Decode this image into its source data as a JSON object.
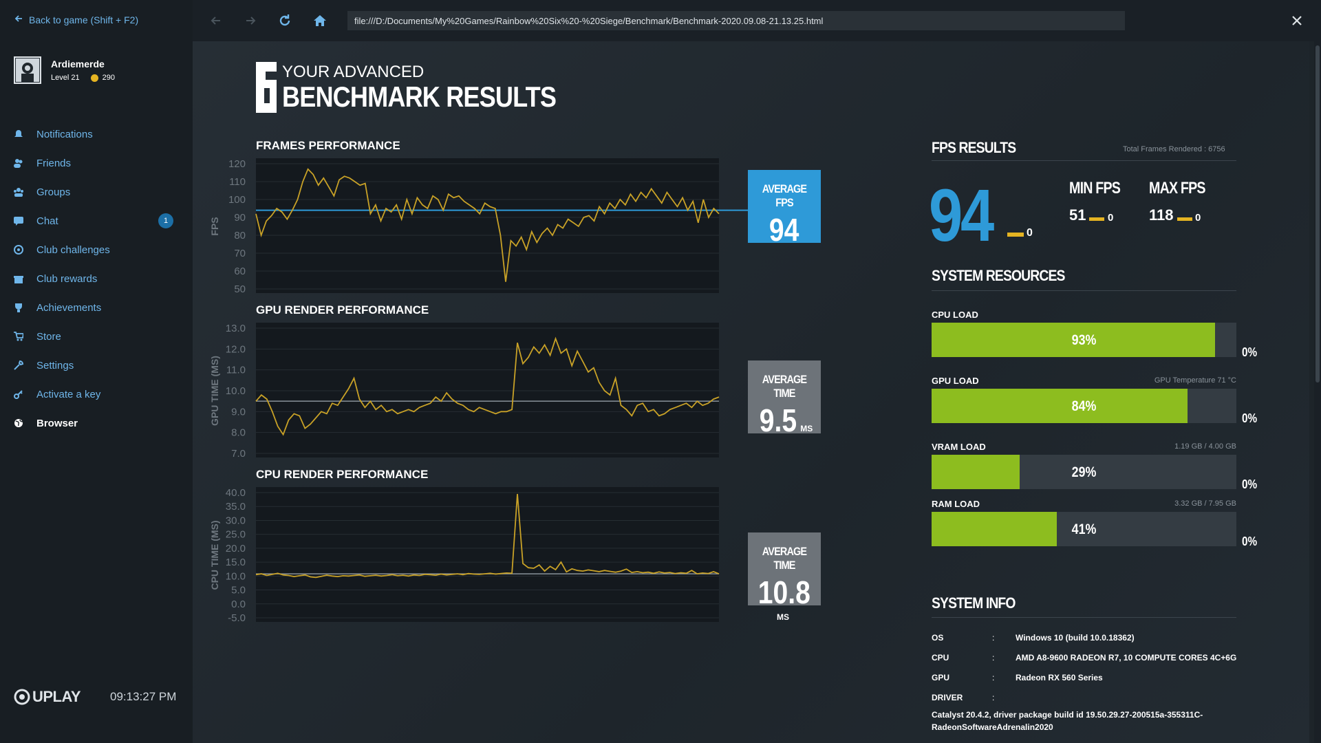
{
  "sidebar": {
    "back_label": "Back to game (Shift + F2)",
    "username": "Ardiemerde",
    "level": "Level 21",
    "coins": "290",
    "items": [
      {
        "label": "Notifications",
        "icon": "bell-icon"
      },
      {
        "label": "Friends",
        "icon": "friends-icon"
      },
      {
        "label": "Groups",
        "icon": "groups-icon"
      },
      {
        "label": "Chat",
        "icon": "chat-icon",
        "badge": "1"
      },
      {
        "label": "Club challenges",
        "icon": "target-icon"
      },
      {
        "label": "Club rewards",
        "icon": "gift-icon"
      },
      {
        "label": "Achievements",
        "icon": "trophy-icon"
      },
      {
        "label": "Store",
        "icon": "cart-icon"
      },
      {
        "label": "Settings",
        "icon": "wrench-icon"
      },
      {
        "label": "Activate a key",
        "icon": "key-icon"
      },
      {
        "label": "Browser",
        "icon": "globe-icon",
        "active": true
      }
    ],
    "brand": "UPLAY",
    "time": "09:13:27 PM"
  },
  "toolbar": {
    "url": "file:///D:/Documents/My%20Games/Rainbow%20Six%20-%20Siege/Benchmark/Benchmark-2020.09.08-21.13.25.html"
  },
  "page": {
    "title_top": "YOUR ADVANCED",
    "title_main": "BENCHMARK RESULTS"
  },
  "charts": {
    "frames": {
      "title": "FRAMES PERFORMANCE",
      "ylabel": "FPS",
      "avg_label": "AVERAGE FPS",
      "avg_value": "94",
      "avg_unit": ""
    },
    "gpu": {
      "title": "GPU RENDER PERFORMANCE",
      "ylabel": "GPU TIME (MS)",
      "avg_label": "AVERAGE TIME",
      "avg_value": "9.5",
      "avg_unit": "MS"
    },
    "cpu": {
      "title": "CPU RENDER PERFORMANCE",
      "ylabel": "CPU TIME (MS)",
      "avg_label": "AVERAGE TIME",
      "avg_value": "10.8",
      "avg_unit": "MS"
    }
  },
  "chart_data": [
    {
      "type": "line",
      "title": "FRAMES PERFORMANCE",
      "ylabel": "FPS",
      "ylim": [
        50,
        120
      ],
      "yticks": [
        "120",
        "110",
        "100",
        "90",
        "80",
        "70",
        "60",
        "50"
      ],
      "reference": 94,
      "series": [
        {
          "values": [
            92,
            80,
            88,
            91,
            95,
            93,
            89,
            94,
            100,
            110,
            117,
            114,
            108,
            112,
            107,
            102,
            111,
            113,
            112,
            110,
            108,
            109,
            92,
            97,
            88,
            95,
            93,
            97,
            89,
            100,
            92,
            101,
            97,
            95,
            102,
            100,
            94,
            103,
            101,
            102,
            99,
            97,
            95,
            92,
            98,
            96,
            95,
            80,
            54,
            77,
            74,
            79,
            72,
            82,
            76,
            81,
            84,
            80,
            86,
            84,
            89,
            87,
            85,
            90,
            91,
            88,
            96,
            92,
            98,
            95,
            100,
            97,
            103,
            99,
            104,
            101,
            106,
            102,
            98,
            104,
            100,
            96,
            101,
            94,
            99,
            87,
            100,
            90,
            95,
            92
          ]
        }
      ]
    },
    {
      "type": "line",
      "title": "GPU RENDER PERFORMANCE",
      "ylabel": "GPU TIME (MS)",
      "ylim": [
        7.0,
        13.0
      ],
      "yticks": [
        "13.0",
        "12.0",
        "11.0",
        "10.0",
        "9.0",
        "8.0",
        "7.0"
      ],
      "reference": 9.5,
      "series": [
        {
          "values": [
            9.5,
            9.8,
            9.6,
            9.0,
            8.3,
            7.9,
            8.6,
            8.9,
            8.8,
            8.2,
            8.4,
            8.7,
            9.0,
            8.9,
            9.4,
            9.3,
            9.7,
            10.1,
            10.6,
            9.6,
            9.2,
            9.5,
            9.1,
            9.3,
            9.0,
            9.1,
            8.9,
            9.0,
            9.1,
            9.0,
            9.2,
            9.3,
            9.4,
            9.7,
            9.5,
            9.9,
            9.6,
            9.4,
            9.3,
            9.1,
            9.0,
            9.2,
            9.1,
            9.0,
            8.9,
            9.0,
            9.0,
            9.1,
            12.3,
            11.3,
            11.6,
            12.1,
            11.8,
            12.2,
            11.7,
            12.5,
            11.8,
            12.0,
            11.2,
            11.9,
            11.4,
            10.9,
            11.1,
            10.4,
            10.0,
            9.8,
            10.6,
            9.3,
            9.1,
            8.8,
            9.3,
            9.4,
            9.0,
            9.1,
            8.8,
            8.9,
            9.1,
            9.2,
            9.3,
            9.4,
            9.2,
            9.5,
            9.3,
            9.4,
            9.6,
            9.7
          ]
        }
      ]
    },
    {
      "type": "line",
      "title": "CPU RENDER PERFORMANCE",
      "ylabel": "CPU TIME (MS)",
      "ylim": [
        -5.0,
        40.0
      ],
      "yticks": [
        "40.0",
        "35.0",
        "30.0",
        "25.0",
        "20.0",
        "15.0",
        "10.0",
        "5.0",
        "0.0",
        "-5.0"
      ],
      "reference": 10.8,
      "series": [
        {
          "values": [
            10.5,
            10.8,
            10.2,
            10.6,
            11.0,
            10.4,
            10.2,
            9.8,
            10.1,
            10.4,
            9.7,
            9.5,
            9.9,
            10.3,
            10.0,
            9.8,
            10.1,
            10.0,
            10.2,
            10.4,
            9.9,
            10.1,
            10.3,
            10.0,
            10.2,
            10.5,
            10.1,
            10.3,
            10.0,
            10.4,
            10.2,
            10.6,
            10.5,
            10.3,
            10.7,
            10.4,
            10.6,
            10.8,
            10.5,
            10.9,
            10.7,
            10.6,
            10.8,
            11.0,
            10.7,
            10.9,
            11.1,
            11.0,
            39.5,
            14.5,
            13.0,
            12.8,
            14.0,
            11.8,
            13.5,
            12.3,
            15.0,
            11.5,
            12.6,
            12.0,
            11.8,
            12.2,
            11.9,
            11.6,
            12.0,
            11.7,
            11.4,
            11.8,
            12.5,
            11.3,
            11.6,
            11.2,
            11.4,
            11.0,
            11.5,
            11.1,
            11.3,
            10.9,
            11.2,
            11.0,
            12.0,
            10.8,
            11.1,
            10.9,
            11.6,
            10.8
          ]
        }
      ]
    }
  ],
  "fps_results": {
    "title": "FPS RESULTS",
    "total_frames": "Total Frames Rendered : 6756",
    "avg": "94",
    "avg_zero": "0",
    "min_label": "MIN FPS",
    "min_value": "51",
    "min_zero": "0",
    "max_label": "MAX FPS",
    "max_value": "118",
    "max_zero": "0"
  },
  "resources": {
    "title": "SYSTEM RESOURCES",
    "items": [
      {
        "label": "CPU LOAD",
        "meta": "",
        "pct_text": "93%",
        "pct": 93,
        "zero": "0%"
      },
      {
        "label": "GPU LOAD",
        "meta": "GPU Temperature 71 °C",
        "pct_text": "84%",
        "pct": 84,
        "zero": "0%"
      },
      {
        "label": "VRAM LOAD",
        "meta": "1.19 GB / 4.00 GB",
        "pct_text": "29%",
        "pct": 29,
        "zero": "0%"
      },
      {
        "label": "RAM LOAD",
        "meta": "3.32 GB / 7.95 GB",
        "pct_text": "41%",
        "pct": 41,
        "zero": "0%"
      }
    ]
  },
  "system_info": {
    "title": "SYSTEM INFO",
    "rows": [
      {
        "key": "OS",
        "sep": ":",
        "value": "Windows 10 (build 10.0.18362)"
      },
      {
        "key": "CPU",
        "sep": ":",
        "value": "AMD A8-9600 RADEON R7, 10 COMPUTE CORES 4C+6G"
      },
      {
        "key": "GPU",
        "sep": ":",
        "value": "Radeon RX 560 Series"
      },
      {
        "key": "DRIVER",
        "sep": ":",
        "value": ""
      }
    ],
    "driver_line1": "Catalyst 20.4.2, driver package build id 19.50.29.27-200515a-355311C-",
    "driver_line2": "RadeonSoftwareAdrenalin2020"
  },
  "colors": {
    "accent_blue": "#2e9ad8",
    "link_blue": "#6fb6ea",
    "line_gold": "#c9a227",
    "bar_green": "#8dbd1f",
    "gray_box": "#6d7379",
    "sidebar_bg": "#181e23"
  }
}
